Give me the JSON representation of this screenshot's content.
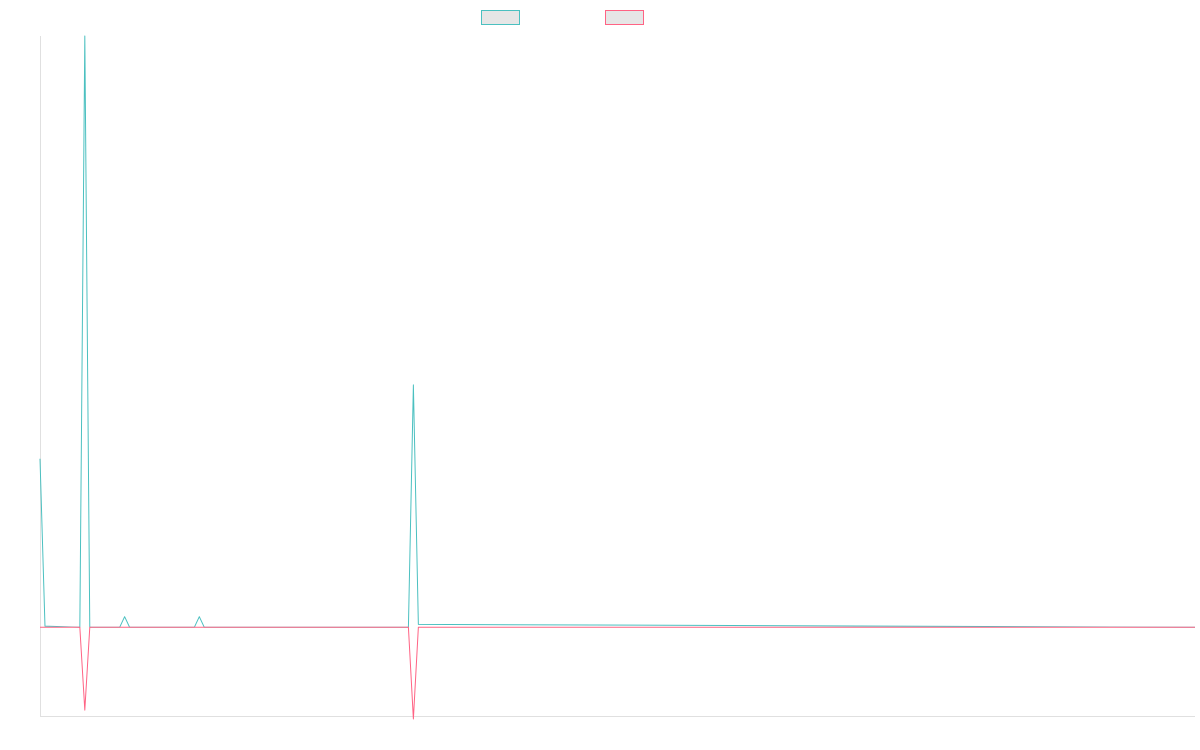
{
  "chart_data": {
    "type": "line",
    "title": "",
    "xlabel": "",
    "ylabel": "",
    "legend_position": "top-center",
    "grid": false,
    "x_count": 233,
    "ylim": [
      -0.15,
      1.0
    ],
    "series": [
      {
        "name": "",
        "color": "#4bc0c0",
        "points": [
          [
            0,
            0.285
          ],
          [
            1,
            0.002
          ],
          [
            8,
            0.0
          ],
          [
            9,
            1.0
          ],
          [
            10,
            0.0
          ],
          [
            16,
            0.0
          ],
          [
            17,
            0.018
          ],
          [
            18,
            0.0
          ],
          [
            31,
            0.0
          ],
          [
            32,
            0.018
          ],
          [
            33,
            0.0
          ],
          [
            74,
            0.0
          ],
          [
            75,
            0.41
          ],
          [
            76,
            0.005
          ],
          [
            232,
            0.0
          ]
        ]
      },
      {
        "name": "",
        "color": "#ff6384",
        "points": [
          [
            0,
            0.0
          ],
          [
            8,
            0.0
          ],
          [
            9,
            -0.14
          ],
          [
            10,
            0.0
          ],
          [
            74,
            0.0
          ],
          [
            75,
            -0.155
          ],
          [
            76,
            0.0
          ],
          [
            232,
            0.0
          ]
        ]
      }
    ]
  }
}
